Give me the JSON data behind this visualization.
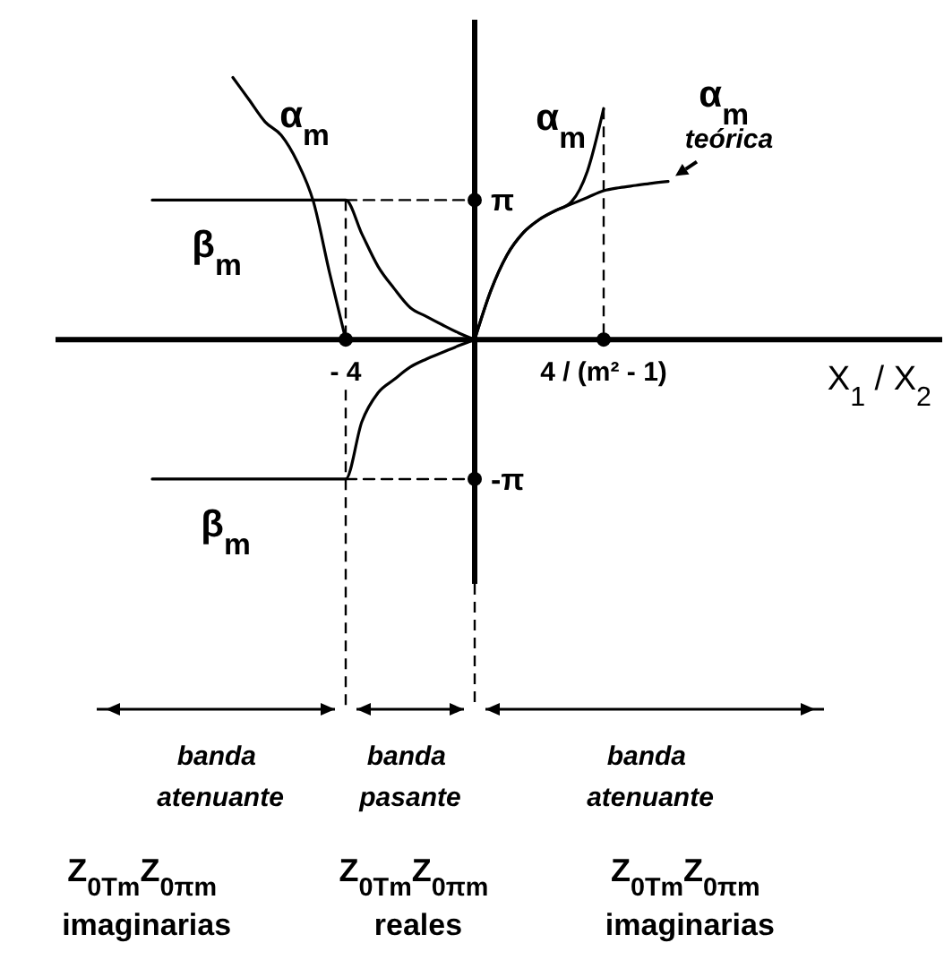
{
  "chart_data": {
    "type": "line",
    "xlabel": "X$_{1}$ / X$_{2}$",
    "categories": [
      null,
      null,
      null,
      null,
      null,
      null,
      null,
      null,
      null,
      null,
      null,
      null,
      null,
      null,
      null,
      null,
      null,
      null,
      "- 4",
      null,
      null,
      null,
      null,
      null,
      null,
      null,
      null,
      null,
      null,
      null,
      null,
      null,
      null,
      null,
      "4 / (m² - 1)",
      null,
      null,
      null,
      null,
      null,
      null,
      null,
      null,
      null,
      null,
      null,
      null,
      null,
      null,
      null,
      null,
      null,
      null,
      null,
      null,
      null
    ],
    "ylim": [
      -5.5,
      7.2
    ],
    "yticks": [
      {
        "value": 3.14,
        "label": "π"
      },
      {
        "value": -3.14,
        "label": "-π"
      }
    ],
    "series": [
      {
        "name": "α$_{m}$",
        "color": "#000000",
        "line_style": "solid",
        "values": [
          null,
          null,
          null,
          null,
          null,
          null,
          null,
          null,
          null,
          null,
          null,
          5.9,
          5.4,
          4.9,
          4.6,
          4.0,
          3.1,
          1.5,
          0,
          null,
          null,
          null,
          null,
          null,
          null,
          null,
          null,
          null,
          null,
          null,
          null,
          null,
          null,
          null,
          null,
          null,
          null,
          null,
          null,
          null,
          null,
          null,
          null,
          null,
          null,
          null,
          null,
          null,
          null,
          null,
          null,
          null,
          null,
          null,
          null,
          null
        ]
      },
      {
        "name": "β$_{m}$",
        "color": "#000000",
        "line_style": "solid",
        "values": [
          null,
          null,
          null,
          null,
          null,
          null,
          3.14,
          3.14,
          3.14,
          3.14,
          3.14,
          3.14,
          3.14,
          3.14,
          3.14,
          3.14,
          3.14,
          3.14,
          3.14,
          2.38,
          1.65,
          1.15,
          0.72,
          0.52,
          0.33,
          0.15,
          0,
          null,
          null,
          null,
          null,
          null,
          null,
          null,
          null,
          null,
          null,
          null,
          null,
          null,
          null,
          null,
          null,
          null,
          null,
          null,
          null,
          null,
          null,
          null,
          null,
          null,
          null,
          null,
          null,
          null
        ]
      },
      {
        "name": "β$_{m}$",
        "color": "#000000",
        "line_style": "solid",
        "values": [
          null,
          null,
          null,
          null,
          null,
          null,
          -3.14,
          -3.14,
          -3.14,
          -3.14,
          -3.14,
          -3.14,
          -3.14,
          -3.14,
          -3.14,
          -3.14,
          -3.14,
          -3.14,
          -3.14,
          -1.85,
          -1.2,
          -0.9,
          -0.62,
          -0.44,
          -0.29,
          -0.14,
          0,
          null,
          null,
          null,
          null,
          null,
          null,
          null,
          null,
          null,
          null,
          null,
          null,
          null,
          null,
          null,
          null,
          null,
          null,
          null,
          null,
          null,
          null,
          null,
          null,
          null,
          null,
          null,
          null,
          null
        ]
      },
      {
        "name": "α$_{m}$",
        "color": "#000000",
        "line_style": "solid",
        "values": [
          null,
          null,
          null,
          null,
          null,
          null,
          null,
          null,
          null,
          null,
          null,
          null,
          null,
          null,
          null,
          null,
          null,
          null,
          null,
          null,
          null,
          null,
          null,
          null,
          null,
          null,
          0,
          1.1,
          1.9,
          2.4,
          2.7,
          2.9,
          3.1,
          3.8,
          5.2,
          null,
          null,
          null,
          null,
          null,
          null,
          null,
          null,
          null,
          null,
          null,
          null,
          null,
          null,
          null,
          null,
          null,
          null,
          null,
          null,
          null
        ]
      },
      {
        "name": "α$_{m}$ teórica",
        "color": "#000000",
        "line_style": "solid",
        "values": [
          null,
          null,
          null,
          null,
          null,
          null,
          null,
          null,
          null,
          null,
          null,
          null,
          null,
          null,
          null,
          null,
          null,
          null,
          null,
          null,
          null,
          null,
          null,
          null,
          null,
          null,
          0,
          1.1,
          1.9,
          2.4,
          2.7,
          2.9,
          3.05,
          3.2,
          3.35,
          3.42,
          3.47,
          3.52,
          3.56,
          null,
          null,
          null,
          null,
          null,
          null,
          null,
          null,
          null,
          null,
          null,
          null,
          null,
          null,
          null,
          null,
          null
        ]
      },
      {
        "color": "#000000",
        "line_style": "dashed",
        "values": [
          null,
          null,
          null,
          null,
          null,
          null,
          null,
          null,
          null,
          null,
          null,
          null,
          null,
          null,
          null,
          null,
          null,
          null,
          3.14,
          3.14,
          3.14,
          3.14,
          3.14,
          3.14,
          3.14,
          3.14,
          3.14,
          null,
          null,
          null,
          null,
          null,
          null,
          null,
          null,
          null,
          null,
          null,
          null,
          null,
          null,
          null,
          null,
          null,
          null,
          null,
          null,
          null,
          null,
          null,
          null,
          null,
          null,
          null,
          null,
          null
        ]
      },
      {
        "color": "#000000",
        "line_style": "dashed",
        "values": [
          null,
          null,
          null,
          null,
          null,
          null,
          null,
          null,
          null,
          null,
          null,
          null,
          null,
          null,
          null,
          null,
          null,
          null,
          -3.14,
          -3.14,
          -3.14,
          -3.14,
          -3.14,
          -3.14,
          -3.14,
          -3.14,
          -3.14,
          null,
          null,
          null,
          null,
          null,
          null,
          null,
          null,
          null,
          null,
          null,
          null,
          null,
          null,
          null,
          null,
          null,
          null,
          null,
          null,
          null,
          null,
          null,
          null,
          null,
          null,
          null,
          null,
          null
        ]
      },
      {
        "type": "scatter",
        "color": "#000000",
        "marker": "circle",
        "values": [
          null,
          null,
          null,
          null,
          null,
          null,
          null,
          null,
          null,
          null,
          null,
          null,
          null,
          null,
          null,
          null,
          null,
          null,
          0,
          null,
          null,
          null,
          null,
          null,
          null,
          null,
          null,
          null,
          null,
          null,
          null,
          null,
          null,
          null,
          0,
          null,
          null,
          null,
          null,
          null,
          null,
          null,
          null,
          null,
          null,
          null,
          null,
          null,
          null,
          null,
          null,
          null,
          null,
          null,
          null,
          null
        ]
      }
    ],
    "ref_lines": [
      {
        "axis": "x",
        "value": "- 4",
        "line_style": "dashed"
      },
      {
        "axis": "x",
        "value": "4 / (m² - 1)",
        "line_style": "dashed"
      }
    ],
    "annotations": [
      "banda atenuante",
      "banda pasante",
      "banda atenuante",
      "Z$_{0Tm}$Z$_{0πm}$ imaginarias",
      "Z$_{0Tm}$Z$_{0πm}$ reales",
      "Z$_{0Tm}$Z$_{0πm}$ imaginarias"
    ]
  }
}
